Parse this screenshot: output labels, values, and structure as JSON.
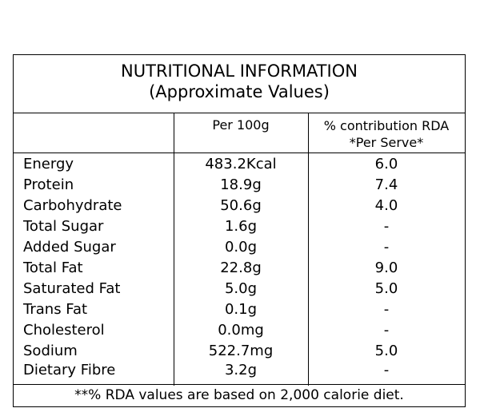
{
  "title": {
    "line1": "NUTRITIONAL INFORMATION",
    "line2": "(Approximate Values)"
  },
  "header": {
    "col2": "Per 100g",
    "col3_line1": "% contribution RDA",
    "col3_line2": "*Per Serve*"
  },
  "rows": [
    {
      "name": "Energy",
      "per100g": "483.2Kcal",
      "rda": "6.0"
    },
    {
      "name": "Protein",
      "per100g": "18.9g",
      "rda": "7.4"
    },
    {
      "name": "Carbohydrate",
      "per100g": "50.6g",
      "rda": "4.0"
    },
    {
      "name": "Total Sugar",
      "per100g": "1.6g",
      "rda": "-"
    },
    {
      "name": "Added Sugar",
      "per100g": "0.0g",
      "rda": "-"
    },
    {
      "name": "Total Fat",
      "per100g": "22.8g",
      "rda": "9.0"
    },
    {
      "name": "Saturated Fat",
      "per100g": "5.0g",
      "rda": "5.0"
    },
    {
      "name": "Trans Fat",
      "per100g": "0.1g",
      "rda": "-"
    },
    {
      "name": "Cholesterol",
      "per100g": "0.0mg",
      "rda": "-"
    },
    {
      "name": "Sodium",
      "per100g": "522.7mg",
      "rda": "5.0"
    },
    {
      "name": "Dietary Fibre",
      "per100g": "3.2g",
      "rda": "-"
    }
  ],
  "footnote": "**% RDA values are based on 2,000 calorie diet."
}
